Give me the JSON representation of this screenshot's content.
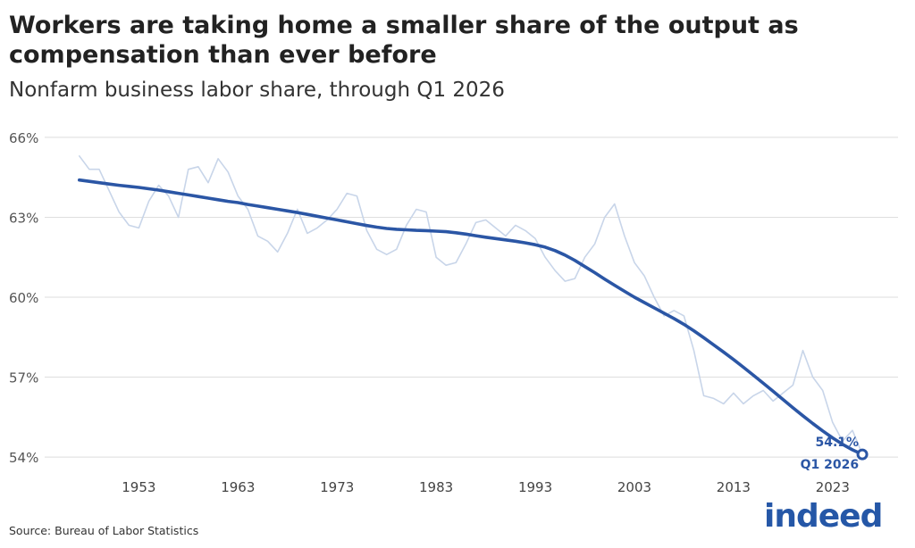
{
  "chart_data": {
    "type": "line",
    "title": "Workers are taking home a smaller share of the output as compensation than ever before",
    "subtitle": "Nonfarm business labor share, through Q1 2026",
    "source": "Source: Bureau of Labor Statistics",
    "brand": "indeed",
    "annotation": {
      "label": "54.1%",
      "date": "Q1 2026"
    },
    "x": [
      1947,
      1948,
      1949,
      1950,
      1951,
      1952,
      1953,
      1954,
      1955,
      1956,
      1957,
      1958,
      1959,
      1960,
      1961,
      1962,
      1963,
      1964,
      1965,
      1966,
      1967,
      1968,
      1969,
      1970,
      1971,
      1972,
      1973,
      1974,
      1975,
      1976,
      1977,
      1978,
      1979,
      1980,
      1981,
      1982,
      1983,
      1984,
      1985,
      1986,
      1987,
      1988,
      1989,
      1990,
      1991,
      1992,
      1993,
      1994,
      1995,
      1996,
      1997,
      1998,
      1999,
      2000,
      2001,
      2002,
      2003,
      2004,
      2005,
      2006,
      2007,
      2008,
      2009,
      2010,
      2011,
      2012,
      2013,
      2014,
      2015,
      2016,
      2017,
      2018,
      2019,
      2020,
      2021,
      2022,
      2023,
      2024,
      2025,
      2026
    ],
    "series": [
      {
        "color": "#c8d5e9",
        "values": [
          65.3,
          64.8,
          64.8,
          64.0,
          63.2,
          62.7,
          62.6,
          63.6,
          64.2,
          63.8,
          63.0,
          64.8,
          64.9,
          64.3,
          65.2,
          64.7,
          63.8,
          63.3,
          62.3,
          62.1,
          61.7,
          62.4,
          63.3,
          62.4,
          62.6,
          62.9,
          63.3,
          63.9,
          63.8,
          62.5,
          61.8,
          61.6,
          61.8,
          62.7,
          63.3,
          63.2,
          61.5,
          61.2,
          61.3,
          62.0,
          62.8,
          62.9,
          62.6,
          62.3,
          62.7,
          62.5,
          62.2,
          61.5,
          61.0,
          60.6,
          60.7,
          61.5,
          62.0,
          63.0,
          63.5,
          62.3,
          61.3,
          60.8,
          60.0,
          59.3,
          59.5,
          59.3,
          58.0,
          56.3,
          56.2,
          56.0,
          56.4,
          56.0,
          56.3,
          56.5,
          56.1,
          56.4,
          56.7,
          58.0,
          57.0,
          56.5,
          55.3,
          54.6,
          55.0,
          54.1
        ]
      },
      {
        "color": "#2b56a5",
        "values": [
          64.4,
          64.35,
          64.3,
          64.25,
          64.2,
          64.16,
          64.12,
          64.07,
          64.02,
          63.96,
          63.9,
          63.84,
          63.78,
          63.72,
          63.66,
          63.6,
          63.55,
          63.48,
          63.42,
          63.36,
          63.3,
          63.24,
          63.18,
          63.11,
          63.04,
          62.97,
          62.9,
          62.83,
          62.76,
          62.69,
          62.63,
          62.58,
          62.55,
          62.53,
          62.51,
          62.5,
          62.48,
          62.46,
          62.42,
          62.37,
          62.31,
          62.25,
          62.2,
          62.15,
          62.1,
          62.04,
          61.97,
          61.88,
          61.75,
          61.58,
          61.38,
          61.15,
          60.92,
          60.68,
          60.45,
          60.22,
          60.0,
          59.8,
          59.6,
          59.4,
          59.2,
          58.98,
          58.74,
          58.48,
          58.21,
          57.94,
          57.66,
          57.37,
          57.07,
          56.77,
          56.47,
          56.16,
          55.85,
          55.55,
          55.26,
          54.98,
          54.72,
          54.48,
          54.27,
          54.1
        ]
      }
    ],
    "xlim": [
      1943.5,
      2029.6
    ],
    "ylim": [
      53.5,
      66.5
    ],
    "xticks": [
      1953,
      1963,
      1973,
      1983,
      1993,
      2003,
      2013,
      2023
    ],
    "yticks": [
      {
        "value": 54,
        "label": "54%"
      },
      {
        "value": 57,
        "label": "57%"
      },
      {
        "value": 60,
        "label": "60%"
      },
      {
        "value": 63,
        "label": "63%"
      },
      {
        "value": 66,
        "label": "66%"
      }
    ],
    "grid": true
  }
}
